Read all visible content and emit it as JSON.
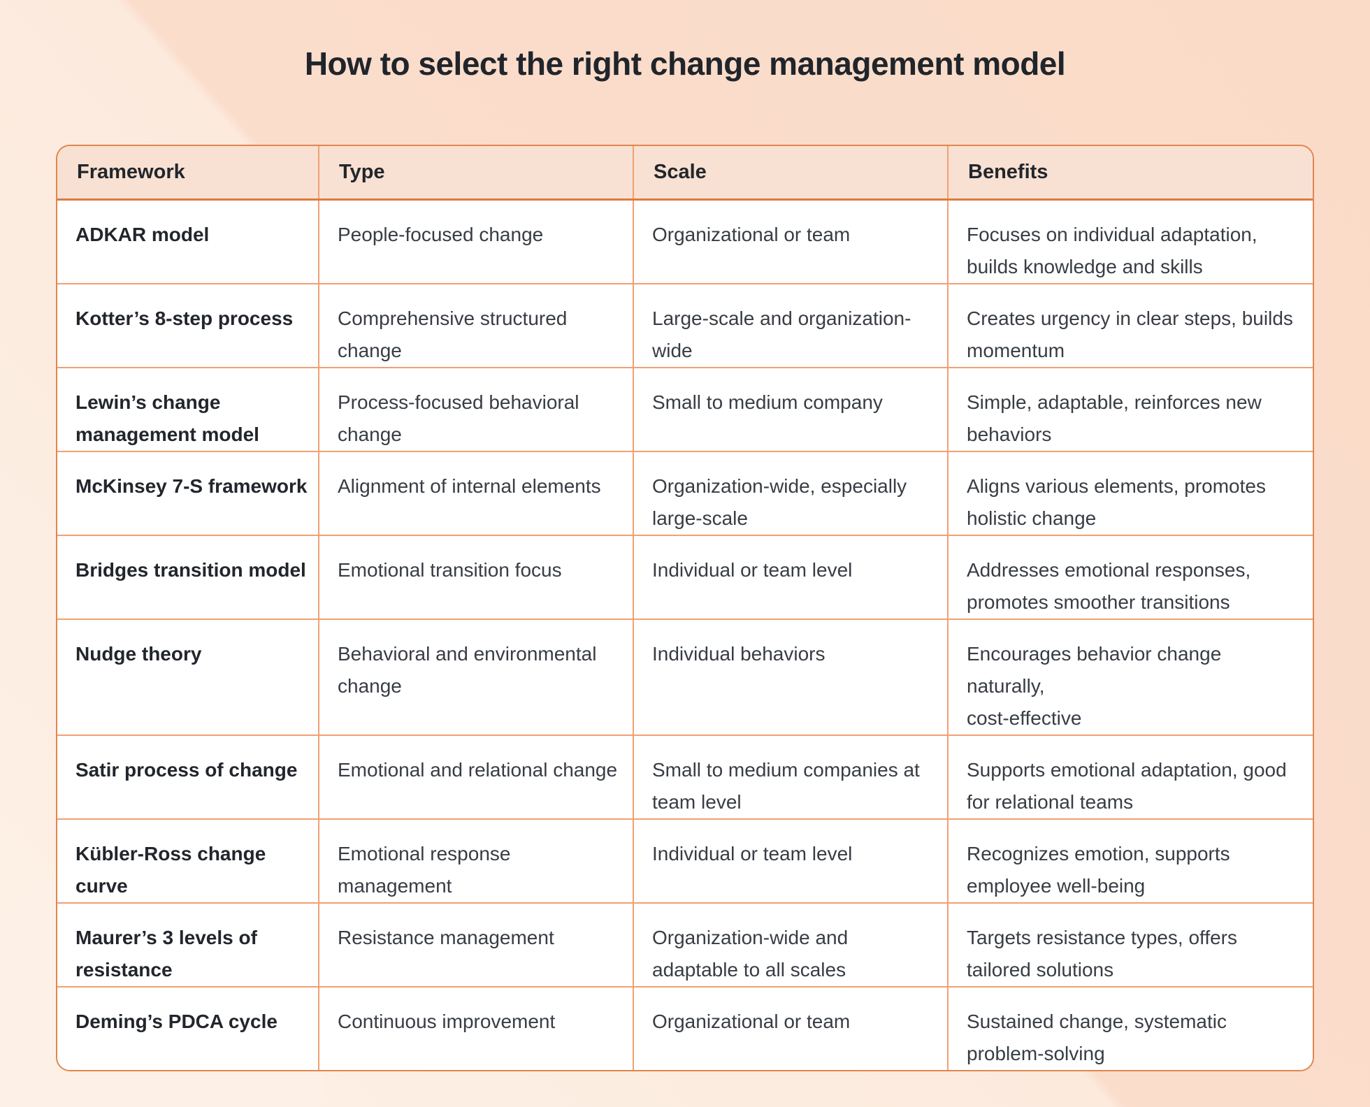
{
  "title": "How to select the right change management model",
  "table": {
    "columns": [
      "Framework",
      "Type",
      "Scale",
      "Benefits"
    ],
    "rows": [
      {
        "framework": "ADKAR model",
        "type": "People-focused change",
        "scale": "Organizational or team",
        "benefits": "Focuses on individual adaptation,\nbuilds knowledge and skills"
      },
      {
        "framework": "Kotter’s 8-step process",
        "type": "Comprehensive structured\nchange",
        "scale": "Large-scale and organization-\nwide",
        "benefits": "Creates urgency in clear steps, builds\nmomentum"
      },
      {
        "framework": "Lewin’s change\nmanagement model",
        "type": "Process-focused behavioral\nchange",
        "scale": "Small to medium company",
        "benefits": "Simple, adaptable, reinforces new\nbehaviors"
      },
      {
        "framework": "McKinsey 7-S framework",
        "type": "Alignment of internal elements",
        "scale": "Organization-wide, especially\nlarge-scale",
        "benefits": "Aligns various elements, promotes\nholistic change"
      },
      {
        "framework": "Bridges transition model",
        "type": "Emotional transition focus",
        "scale": "Individual or team level",
        "benefits": "Addresses emotional responses,\npromotes smoother transitions"
      },
      {
        "framework": "Nudge theory",
        "type": "Behavioral and environmental\nchange",
        "scale": "Individual behaviors",
        "benefits": "Encourages behavior change naturally,\ncost-effective"
      },
      {
        "framework": "Satir process of change",
        "type": "Emotional and relational change",
        "scale": "Small to medium companies at\nteam level",
        "benefits": "Supports emotional adaptation, good\nfor relational teams"
      },
      {
        "framework": "Kübler-Ross change\ncurve",
        "type": "Emotional response\nmanagement",
        "scale": "Individual or team level",
        "benefits": "Recognizes emotion, supports\nemployee well-being"
      },
      {
        "framework": "Maurer’s 3 levels of\nresistance",
        "type": "Resistance management",
        "scale": "Organization-wide and\nadaptable to all scales",
        "benefits": "Targets resistance types, offers\ntailored solutions"
      },
      {
        "framework": "Deming’s PDCA cycle",
        "type": "Continuous improvement",
        "scale": "Organizational or team",
        "benefits": "Sustained change, systematic\nproblem-solving"
      }
    ]
  },
  "colors": {
    "page_background": "#fceadd",
    "background_light": "#fdf1e7",
    "background_dark": "#fadbc8",
    "table_border": "#e1854f",
    "grid_line": "#f0a173",
    "header_separator": "#dd7b3e",
    "header_background": "#f8e1d2",
    "cell_background": "#ffffff",
    "heading_text": "#20252b",
    "body_text": "#383d44"
  }
}
